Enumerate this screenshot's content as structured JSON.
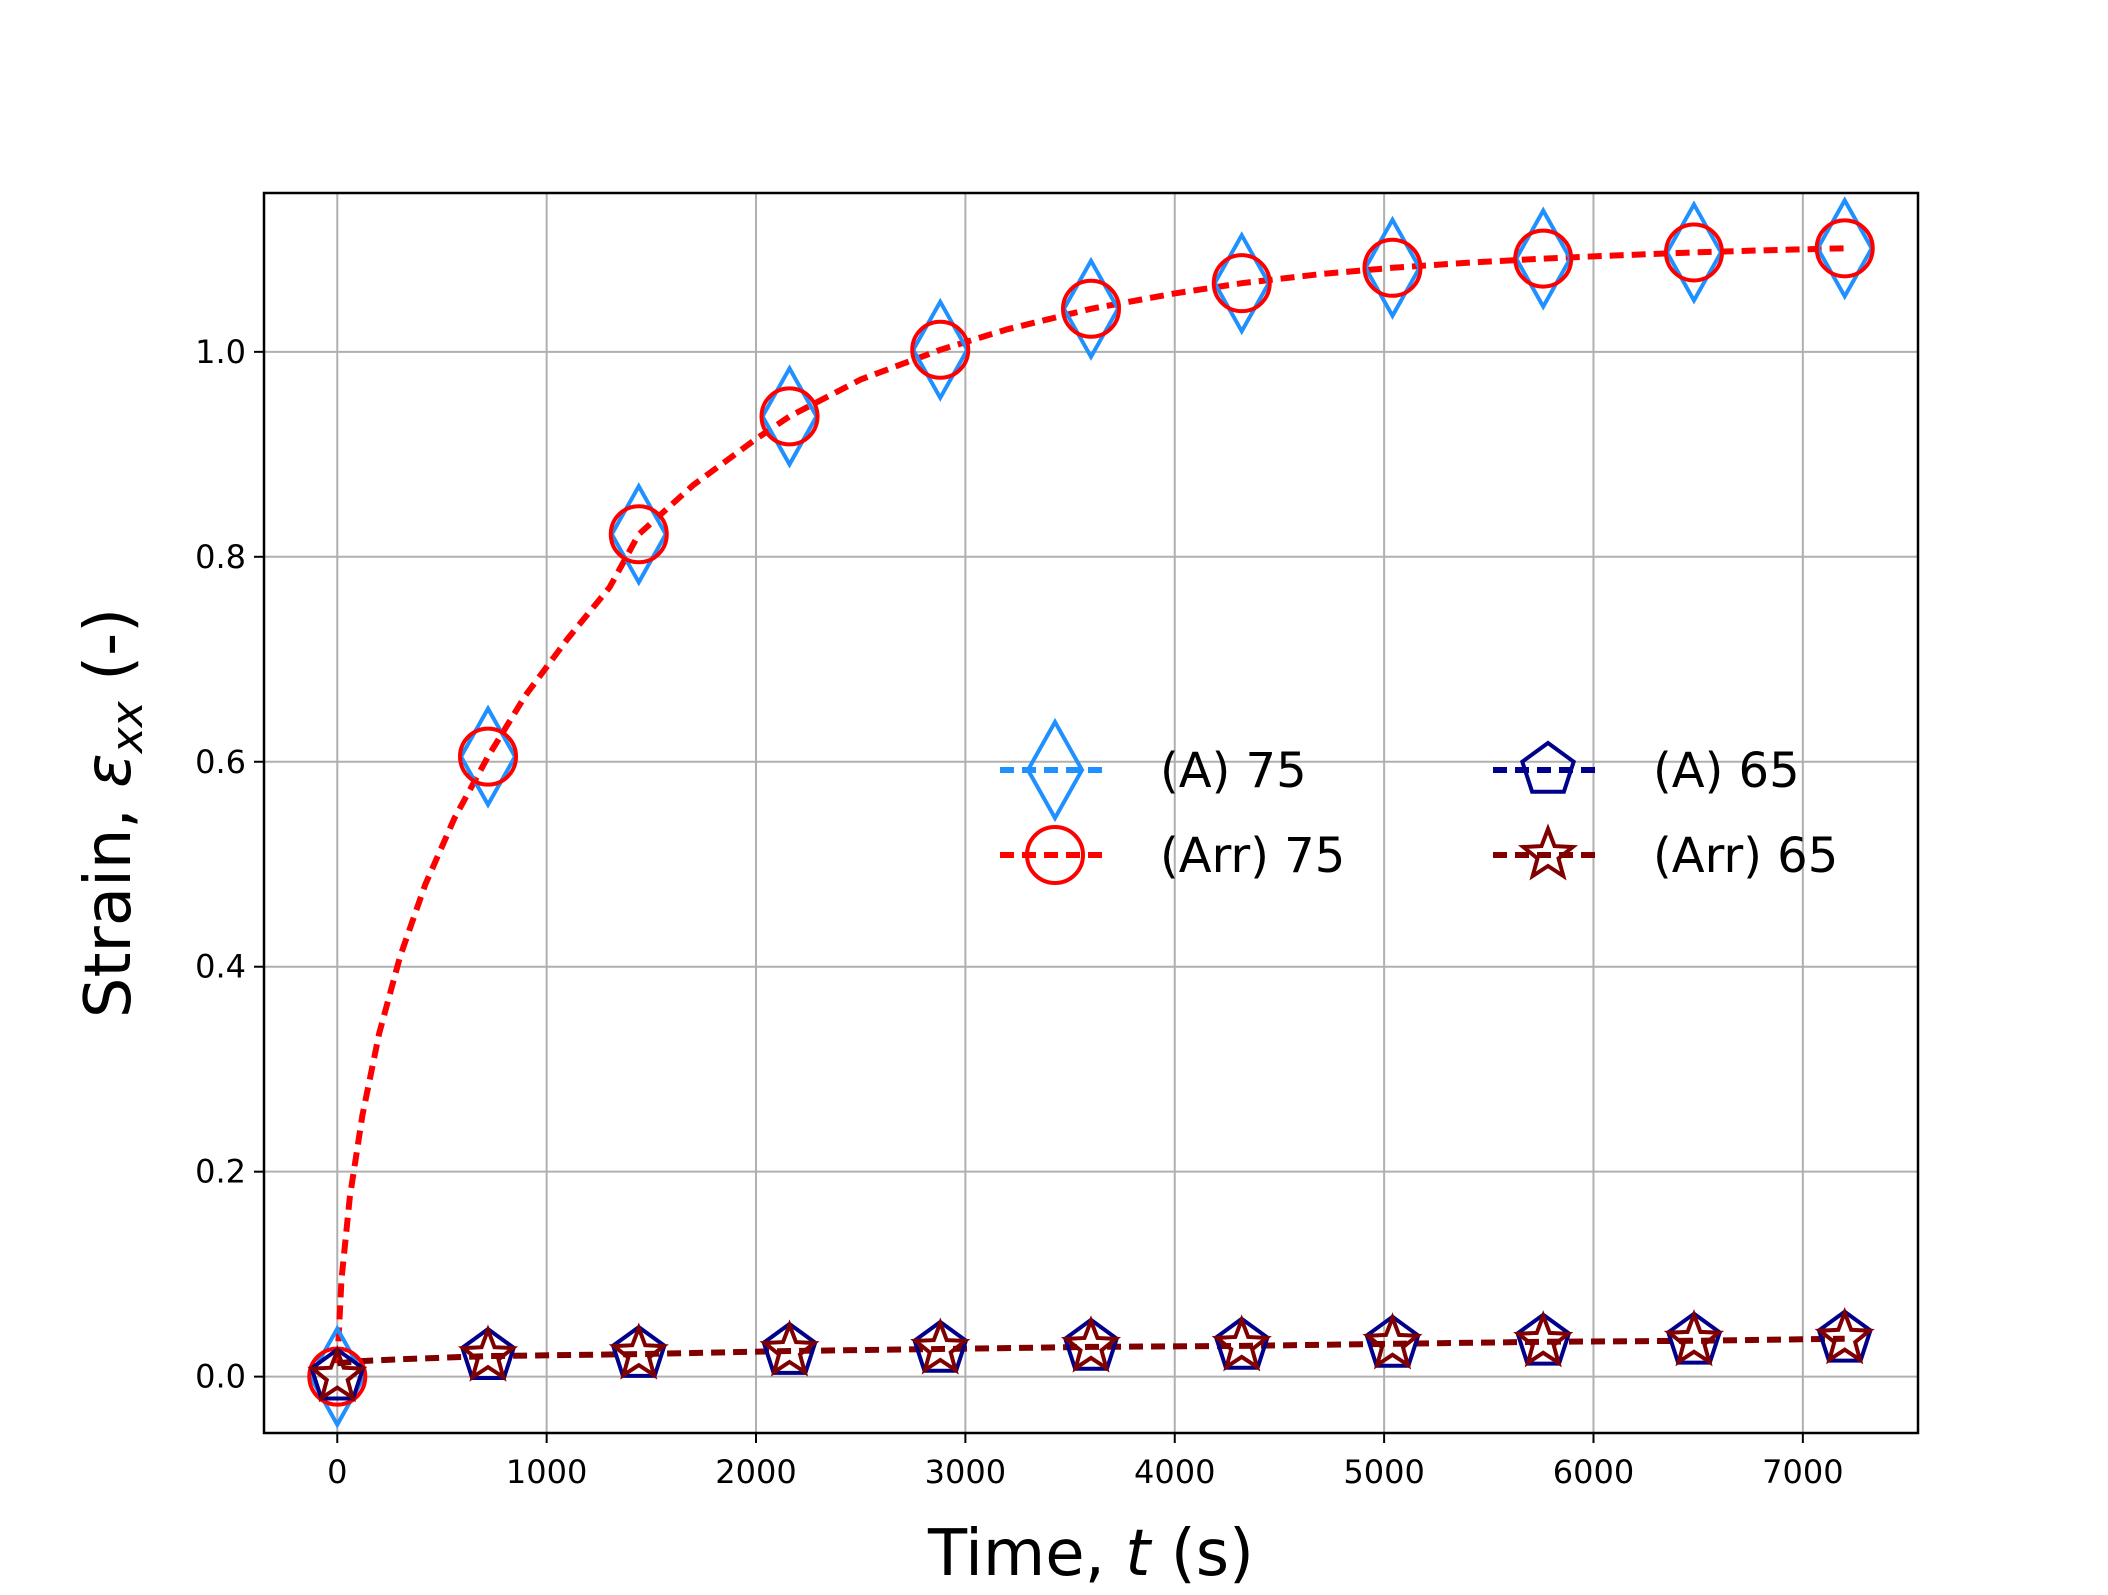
{
  "chart_data": {
    "type": "line",
    "xlabel": "Time, t (s)",
    "ylabel": "Strain, εxx (-)",
    "xlim": [
      -350,
      7550
    ],
    "ylim": [
      -0.055,
      1.155
    ],
    "xticks": [
      0,
      1000,
      2000,
      3000,
      4000,
      5000,
      6000,
      7000
    ],
    "yticks": [
      0.0,
      0.2,
      0.4,
      0.6,
      0.8,
      1.0
    ],
    "xtick_labels": [
      "0",
      "1000",
      "2000",
      "3000",
      "4000",
      "5000",
      "6000",
      "7000"
    ],
    "ytick_labels": [
      "0.0",
      "0.2",
      "0.4",
      "0.6",
      "0.8",
      "1.0"
    ],
    "grid": true,
    "legend_position": "center-right",
    "x": [
      0,
      720,
      1440,
      2160,
      2880,
      3600,
      4320,
      5040,
      5760,
      6480,
      7200
    ],
    "series": [
      {
        "name": "(A) 75",
        "color": "#1e90ff",
        "marker": "diamond",
        "linestyle": "dashed",
        "values": [
          0.0,
          0.605,
          0.822,
          0.937,
          1.002,
          1.042,
          1.067,
          1.082,
          1.091,
          1.097,
          1.101
        ]
      },
      {
        "name": "(Arr) 75",
        "color": "#ff0000",
        "marker": "circle",
        "linestyle": "dashed",
        "values": [
          0.0,
          0.605,
          0.822,
          0.937,
          1.002,
          1.042,
          1.067,
          1.082,
          1.091,
          1.097,
          1.101
        ]
      },
      {
        "name": "(A) 65",
        "color": "#00008b",
        "marker": "pentagon",
        "linestyle": "dashed",
        "values": [
          0.0,
          0.02,
          0.022,
          0.025,
          0.027,
          0.029,
          0.03,
          0.032,
          0.034,
          0.035,
          0.037
        ]
      },
      {
        "name": "(Arr) 65",
        "color": "#800000",
        "marker": "star",
        "linestyle": "dashed",
        "values": [
          0.0,
          0.02,
          0.022,
          0.025,
          0.027,
          0.029,
          0.03,
          0.032,
          0.034,
          0.035,
          0.037
        ]
      }
    ],
    "fit_lines": [
      {
        "series": "(Arr) 75",
        "x": [
          0,
          20,
          60,
          120,
          200,
          300,
          420,
          560,
          720,
          900,
          1100,
          1300,
          1440,
          1700,
          2000,
          2160,
          2500,
          2880,
          3200,
          3600,
          4000,
          4320,
          4700,
          5040,
          5400,
          5760,
          6100,
          6480,
          6800,
          7200
        ],
        "values": [
          0.013,
          0.095,
          0.175,
          0.255,
          0.335,
          0.41,
          0.48,
          0.545,
          0.605,
          0.665,
          0.72,
          0.77,
          0.822,
          0.87,
          0.915,
          0.937,
          0.973,
          1.002,
          1.022,
          1.042,
          1.057,
          1.067,
          1.076,
          1.082,
          1.087,
          1.091,
          1.094,
          1.097,
          1.099,
          1.101
        ]
      },
      {
        "series": "(Arr) 65",
        "x": [
          0,
          100,
          300,
          720,
          1440,
          2160,
          2880,
          3600,
          4320,
          5040,
          5760,
          6480,
          7200
        ],
        "values": [
          0.013,
          0.015,
          0.017,
          0.02,
          0.022,
          0.025,
          0.027,
          0.029,
          0.03,
          0.032,
          0.034,
          0.035,
          0.037
        ]
      }
    ]
  }
}
